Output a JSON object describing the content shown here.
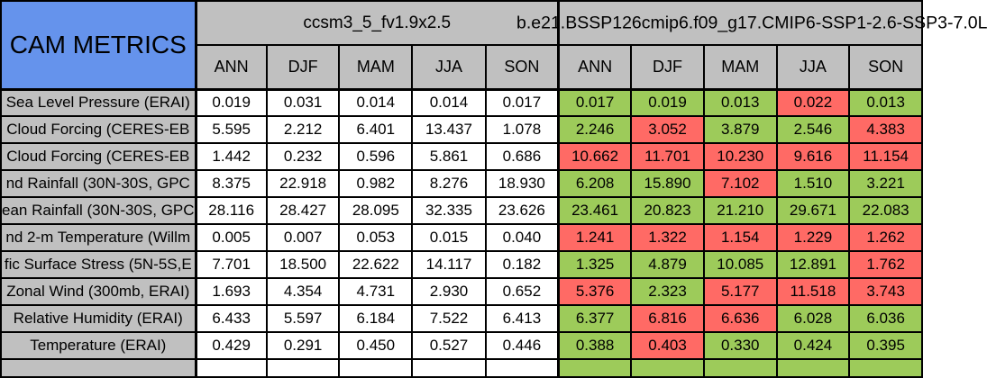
{
  "colors": {
    "corner_blue": "#6593EC",
    "header_gray": "#C0C0C0",
    "cell_green": "#9DCB5A",
    "cell_red": "#FF6A65",
    "grid_black": "#000000",
    "cell_white": "#FFFFFF"
  },
  "chart_data": {
    "type": "table",
    "title": "CAM METRICS",
    "groups": [
      {
        "title": "ccsm3_5_fv1.9x2.5",
        "seasons": [
          "ANN",
          "DJF",
          "MAM",
          "JJA",
          "SON"
        ]
      },
      {
        "title": "b.e21.BSSP126cmip6.f09_g17.CMIP6-SSP1-2.6-SSP3-7.0L",
        "seasons": [
          "ANN",
          "DJF",
          "MAM",
          "JJA",
          "SON"
        ]
      }
    ],
    "rows": [
      {
        "label": "Sea Level Pressure (ERAI)",
        "baseline": [
          "0.019",
          "0.031",
          "0.014",
          "0.014",
          "0.017"
        ],
        "comparison": [
          "0.017",
          "0.019",
          "0.013",
          "0.022",
          "0.013"
        ],
        "comparison_colors": [
          "green",
          "green",
          "green",
          "red",
          "green"
        ]
      },
      {
        "label": "Cloud Forcing (CERES-EB",
        "baseline": [
          "5.595",
          "2.212",
          "6.401",
          "13.437",
          "1.078"
        ],
        "comparison": [
          "2.246",
          "3.052",
          "3.879",
          "2.546",
          "4.383"
        ],
        "comparison_colors": [
          "green",
          "red",
          "green",
          "green",
          "red"
        ]
      },
      {
        "label": "Cloud Forcing (CERES-EB",
        "baseline": [
          "1.442",
          "0.232",
          "0.596",
          "5.861",
          "0.686"
        ],
        "comparison": [
          "10.662",
          "11.701",
          "10.230",
          "9.616",
          "11.154"
        ],
        "comparison_colors": [
          "red",
          "red",
          "red",
          "red",
          "red"
        ]
      },
      {
        "label": "nd Rainfall (30N-30S, GPC",
        "baseline": [
          "8.375",
          "22.918",
          "0.982",
          "8.276",
          "18.930"
        ],
        "comparison": [
          "6.208",
          "15.890",
          "7.102",
          "1.510",
          "3.221"
        ],
        "comparison_colors": [
          "green",
          "green",
          "red",
          "green",
          "green"
        ]
      },
      {
        "label": "ean Rainfall (30N-30S, GPC",
        "baseline": [
          "28.116",
          "28.427",
          "28.095",
          "32.335",
          "23.626"
        ],
        "comparison": [
          "23.461",
          "20.823",
          "21.210",
          "29.671",
          "22.083"
        ],
        "comparison_colors": [
          "green",
          "green",
          "green",
          "green",
          "green"
        ]
      },
      {
        "label": "nd 2-m Temperature (Willm",
        "baseline": [
          "0.005",
          "0.007",
          "0.053",
          "0.015",
          "0.040"
        ],
        "comparison": [
          "1.241",
          "1.322",
          "1.154",
          "1.229",
          "1.262"
        ],
        "comparison_colors": [
          "red",
          "red",
          "red",
          "red",
          "red"
        ]
      },
      {
        "label": "fic Surface Stress (5N-5S,E",
        "baseline": [
          "7.701",
          "18.500",
          "22.622",
          "14.117",
          "0.182"
        ],
        "comparison": [
          "1.325",
          "4.879",
          "10.085",
          "12.891",
          "1.762"
        ],
        "comparison_colors": [
          "green",
          "green",
          "green",
          "green",
          "red"
        ]
      },
      {
        "label": "Zonal Wind (300mb, ERAI)",
        "baseline": [
          "1.693",
          "4.354",
          "4.731",
          "2.930",
          "0.652"
        ],
        "comparison": [
          "5.376",
          "2.323",
          "5.177",
          "11.518",
          "3.743"
        ],
        "comparison_colors": [
          "red",
          "green",
          "red",
          "red",
          "red"
        ]
      },
      {
        "label": "Relative Humidity (ERAI)",
        "baseline": [
          "6.433",
          "5.597",
          "6.184",
          "7.522",
          "6.413"
        ],
        "comparison": [
          "6.377",
          "6.816",
          "6.636",
          "6.028",
          "6.036"
        ],
        "comparison_colors": [
          "green",
          "red",
          "red",
          "green",
          "green"
        ]
      },
      {
        "label": "Temperature (ERAI)",
        "baseline": [
          "0.429",
          "0.291",
          "0.450",
          "0.527",
          "0.446"
        ],
        "comparison": [
          "0.388",
          "0.403",
          "0.330",
          "0.424",
          "0.395"
        ],
        "comparison_colors": [
          "green",
          "red",
          "green",
          "green",
          "green"
        ]
      }
    ]
  }
}
